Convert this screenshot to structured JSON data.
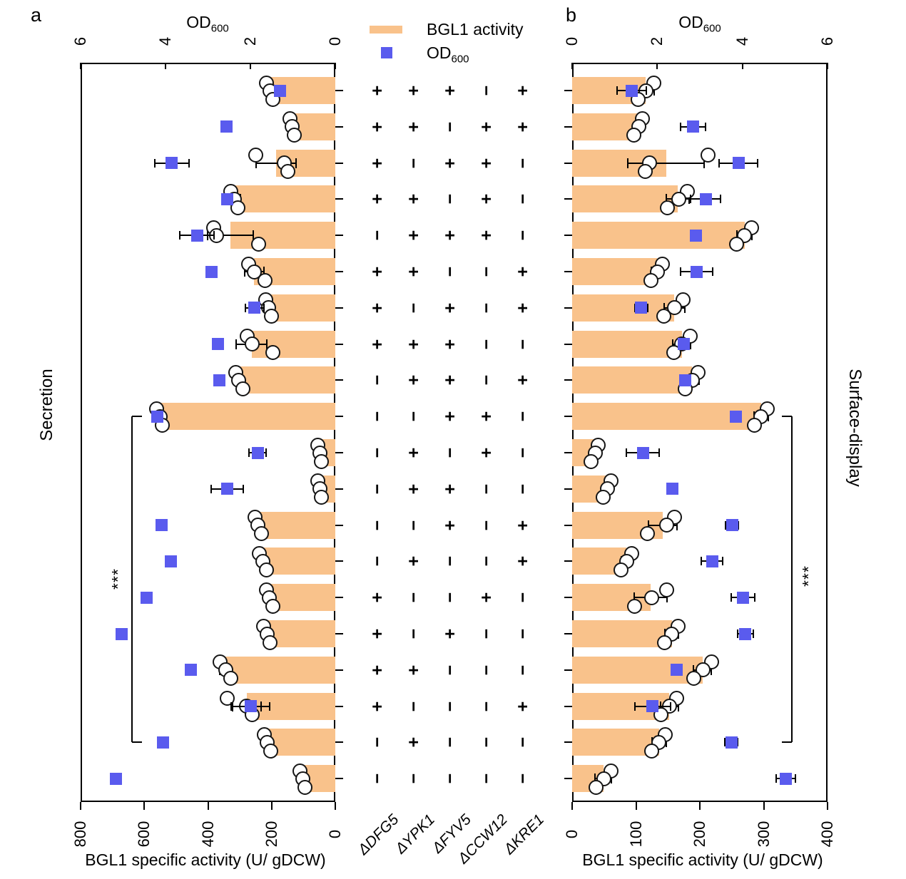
{
  "legend": {
    "items": [
      {
        "swatch": "bar",
        "label": "BGL1 activity"
      },
      {
        "swatch": "od-square",
        "label_main": "OD",
        "label_sub": "600"
      }
    ]
  },
  "colors": {
    "bar_fill": "#F9C28B",
    "od_marker": "#5A5BEE",
    "axis": "#000000",
    "point_stroke": "#151515"
  },
  "matrix": {
    "genes": [
      "ΔDFG5",
      "ΔYPK1",
      "ΔFYV5",
      "ΔCCW12",
      "ΔKRE1"
    ],
    "rows": [
      [
        "+",
        "+",
        "+",
        "-",
        "+"
      ],
      [
        "+",
        "+",
        "-",
        "+",
        "+"
      ],
      [
        "+",
        "-",
        "+",
        "+",
        "-"
      ],
      [
        "+",
        "+",
        "-",
        "+",
        "-"
      ],
      [
        "-",
        "+",
        "+",
        "+",
        "-"
      ],
      [
        "+",
        "+",
        "-",
        "-",
        "+"
      ],
      [
        "+",
        "-",
        "+",
        "-",
        "+"
      ],
      [
        "+",
        "+",
        "+",
        "-",
        "-"
      ],
      [
        "-",
        "+",
        "+",
        "-",
        "+"
      ],
      [
        "-",
        "-",
        "+",
        "+",
        "-"
      ],
      [
        "-",
        "+",
        "-",
        "+",
        "-"
      ],
      [
        "-",
        "+",
        "+",
        "-",
        "-"
      ],
      [
        "-",
        "-",
        "+",
        "-",
        "+"
      ],
      [
        "-",
        "+",
        "-",
        "-",
        "+"
      ],
      [
        "+",
        "-",
        "-",
        "+",
        "-"
      ],
      [
        "+",
        "-",
        "+",
        "-",
        "-"
      ],
      [
        "+",
        "+",
        "-",
        "-",
        "-"
      ],
      [
        "+",
        "-",
        "-",
        "-",
        "+"
      ],
      [
        "-",
        "+",
        "-",
        "-",
        "-"
      ],
      [
        "-",
        "-",
        "-",
        "-",
        "-"
      ]
    ]
  },
  "chart_data": [
    {
      "id": "a",
      "type": "bar",
      "orientation": "horizontal-left",
      "panel_label": "a",
      "side_label": "Secretion",
      "top_axis_title_main": "OD",
      "top_axis_title_sub": "600",
      "xlabel": "BGL1 specific activity (U/ gDCW)",
      "activity_axis": {
        "ticks": [
          800,
          600,
          400,
          200,
          0
        ],
        "max": 800
      },
      "od_axis": {
        "ticks": [
          6,
          4,
          2,
          0
        ],
        "max": 6
      },
      "significance": {
        "label": "***",
        "row_start": 10,
        "row_end": 19
      },
      "rows": [
        {
          "activity": 206,
          "activity_err": 12,
          "replicates": [
            217,
            206,
            195
          ],
          "od": 1.3,
          "od_err": 0.1
        },
        {
          "activity": 136,
          "activity_err": 8,
          "replicates": [
            143,
            136,
            128
          ],
          "od": 2.56,
          "od_err": 0.0
        },
        {
          "activity": 186,
          "activity_err": 62,
          "replicates": [
            249,
            161,
            150
          ],
          "od": 3.85,
          "od_err": 0.4
        },
        {
          "activity": 314,
          "activity_err": 15,
          "replicates": [
            329,
            318,
            305
          ],
          "od": 2.55,
          "od_err": 0.08
        },
        {
          "activity": 330,
          "activity_err": 72,
          "replicates": [
            381,
            372,
            240
          ],
          "od": 3.26,
          "od_err": 0.4
        },
        {
          "activity": 255,
          "activity_err": 30,
          "replicates": [
            273,
            255,
            220
          ],
          "od": 2.91,
          "od_err": 0.0
        },
        {
          "activity": 210,
          "activity_err": 10,
          "replicates": [
            219,
            210,
            200
          ],
          "od": 1.9,
          "od_err": 0.22
        },
        {
          "activity": 263,
          "activity_err": 48,
          "replicates": [
            276,
            262,
            195
          ],
          "od": 2.77,
          "od_err": 0.0
        },
        {
          "activity": 302,
          "activity_err": 14,
          "replicates": [
            313,
            303,
            290
          ],
          "od": 2.73,
          "od_err": 0.08
        },
        {
          "activity": 553,
          "activity_err": 10,
          "replicates": [
            561,
            551,
            543
          ],
          "od": 4.2,
          "od_err": 0.06
        },
        {
          "activity": 49,
          "activity_err": 6,
          "replicates": [
            55,
            49,
            43
          ],
          "od": 1.83,
          "od_err": 0.2
        },
        {
          "activity": 49,
          "activity_err": 6,
          "replicates": [
            55,
            49,
            43
          ],
          "od": 2.55,
          "od_err": 0.38
        },
        {
          "activity": 243,
          "activity_err": 12,
          "replicates": [
            253,
            243,
            232
          ],
          "od": 4.09,
          "od_err": 0.0
        },
        {
          "activity": 228,
          "activity_err": 12,
          "replicates": [
            238,
            228,
            217
          ],
          "od": 3.87,
          "od_err": 0.0
        },
        {
          "activity": 207,
          "activity_err": 10,
          "replicates": [
            216,
            207,
            197
          ],
          "od": 4.45,
          "od_err": 0.0
        },
        {
          "activity": 215,
          "activity_err": 12,
          "replicates": [
            225,
            215,
            204
          ],
          "od": 5.04,
          "od_err": 0.0
        },
        {
          "activity": 345,
          "activity_err": 18,
          "replicates": [
            361,
            345,
            329
          ],
          "od": 3.41,
          "od_err": 0.0
        },
        {
          "activity": 278,
          "activity_err": 45,
          "replicates": [
            340,
            278,
            260
          ],
          "od": 2.0,
          "od_err": 0.45
        },
        {
          "activity": 213,
          "activity_err": 12,
          "replicates": [
            223,
            213,
            202
          ],
          "od": 4.06,
          "od_err": 0.0
        },
        {
          "activity": 103,
          "activity_err": 9,
          "replicates": [
            111,
            103,
            95
          ],
          "od": 5.17,
          "od_err": 0.0
        }
      ]
    },
    {
      "id": "b",
      "type": "bar",
      "orientation": "horizontal-right",
      "panel_label": "b",
      "side_label": "Surface-display",
      "top_axis_title_main": "OD",
      "top_axis_title_sub": "600",
      "xlabel": "BGL1 specific activity (U/ gDCW)",
      "activity_axis": {
        "ticks": [
          0,
          100,
          200,
          300,
          400
        ],
        "max": 400
      },
      "od_axis": {
        "ticks": [
          0,
          2,
          4,
          6
        ],
        "max": 6
      },
      "significance": {
        "label": "***",
        "row_start": 10,
        "row_end": 19
      },
      "rows": [
        {
          "activity": 115,
          "activity_err": 14,
          "replicates": [
            128,
            116,
            103
          ],
          "od": 1.4,
          "od_err": 0.35
        },
        {
          "activity": 104,
          "activity_err": 6,
          "replicates": [
            110,
            104,
            97
          ],
          "od": 2.84,
          "od_err": 0.3
        },
        {
          "activity": 147,
          "activity_err": 60,
          "replicates": [
            213,
            121,
            115
          ],
          "od": 3.91,
          "od_err": 0.45
        },
        {
          "activity": 165,
          "activity_err": 18,
          "replicates": [
            180,
            167,
            149
          ],
          "od": 3.14,
          "od_err": 0.35
        },
        {
          "activity": 270,
          "activity_err": 12,
          "replicates": [
            281,
            270,
            258
          ],
          "od": 2.91,
          "od_err": 0.06
        },
        {
          "activity": 133,
          "activity_err": 9,
          "replicates": [
            141,
            133,
            124
          ],
          "od": 2.93,
          "od_err": 0.38
        },
        {
          "activity": 160,
          "activity_err": 16,
          "replicates": [
            174,
            160,
            144
          ],
          "od": 1.62,
          "od_err": 0.15
        },
        {
          "activity": 172,
          "activity_err": 14,
          "replicates": [
            185,
            172,
            159
          ],
          "od": 2.63,
          "od_err": 0.1
        },
        {
          "activity": 188,
          "activity_err": 11,
          "replicates": [
            197,
            188,
            177
          ],
          "od": 2.66,
          "od_err": 0.08
        },
        {
          "activity": 296,
          "activity_err": 11,
          "replicates": [
            306,
            296,
            286
          ],
          "od": 3.85,
          "od_err": 0.12
        },
        {
          "activity": 36,
          "activity_err": 5,
          "replicates": [
            41,
            36,
            30
          ],
          "od": 1.66,
          "od_err": 0.38
        },
        {
          "activity": 55,
          "activity_err": 6,
          "replicates": [
            61,
            55,
            49
          ],
          "od": 2.35,
          "od_err": 0.0
        },
        {
          "activity": 142,
          "activity_err": 22,
          "replicates": [
            160,
            148,
            118
          ],
          "od": 3.76,
          "od_err": 0.15
        },
        {
          "activity": 85,
          "activity_err": 8,
          "replicates": [
            93,
            85,
            77
          ],
          "od": 3.29,
          "od_err": 0.25
        },
        {
          "activity": 123,
          "activity_err": 26,
          "replicates": [
            148,
            125,
            98
          ],
          "od": 4.01,
          "od_err": 0.28
        },
        {
          "activity": 156,
          "activity_err": 11,
          "replicates": [
            166,
            156,
            145
          ],
          "od": 4.07,
          "od_err": 0.18
        },
        {
          "activity": 204,
          "activity_err": 14,
          "replicates": [
            218,
            205,
            191
          ],
          "od": 2.46,
          "od_err": 0.0
        },
        {
          "activity": 152,
          "activity_err": 14,
          "replicates": [
            164,
            152,
            139
          ],
          "od": 1.89,
          "od_err": 0.42
        },
        {
          "activity": 136,
          "activity_err": 11,
          "replicates": [
            146,
            136,
            125
          ],
          "od": 3.74,
          "od_err": 0.15
        },
        {
          "activity": 49,
          "activity_err": 13,
          "replicates": [
            61,
            50,
            37
          ],
          "od": 5.02,
          "od_err": 0.22
        }
      ]
    }
  ]
}
